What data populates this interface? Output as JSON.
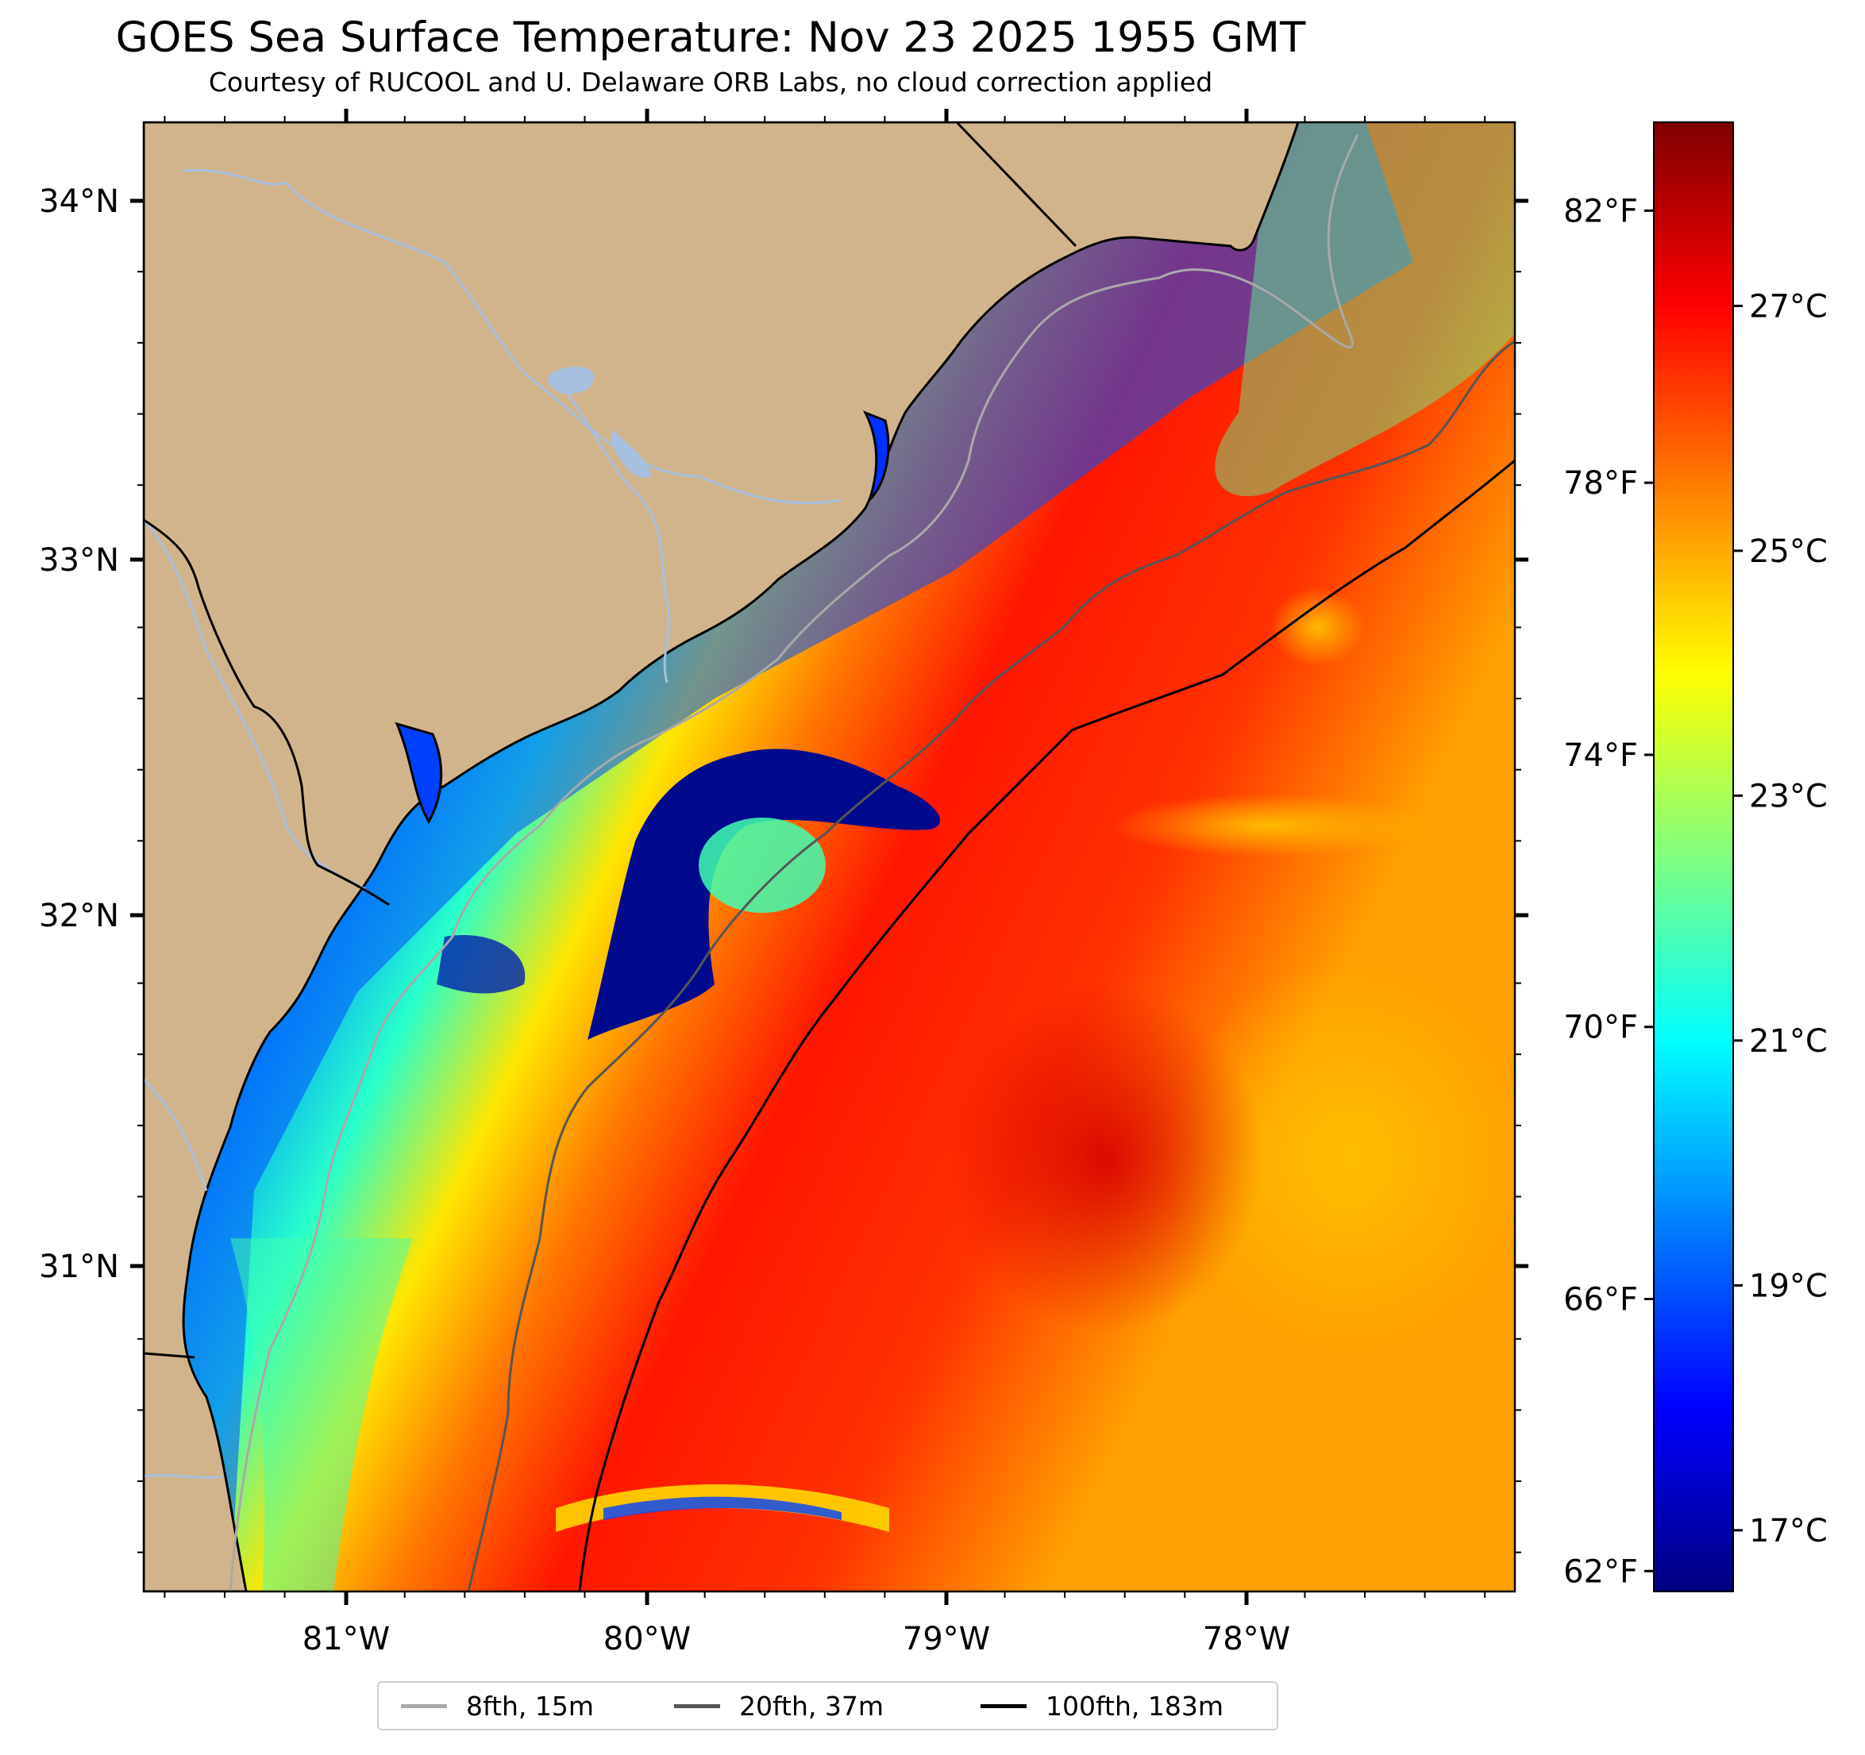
{
  "title": "GOES Sea Surface Temperature: Nov 23 2025 1955 GMT",
  "subtitle": "Courtesy of RUCOOL and U. Delaware ORB Labs, no cloud correction applied",
  "map": {
    "extent": {
      "lon_min": -81.67,
      "lon_max": -77.1,
      "lat_min": 30.09,
      "lat_max": 34.22
    },
    "land_color": "#d2b48c",
    "water_line_color": "#a8c0e0",
    "lon_ticks": [
      {
        "value": -81,
        "label": "81°W"
      },
      {
        "value": -80,
        "label": "80°W"
      },
      {
        "value": -79,
        "label": "79°W"
      },
      {
        "value": -78,
        "label": "78°W"
      }
    ],
    "lat_ticks": [
      {
        "value": 34,
        "label": "34°N"
      },
      {
        "value": 33,
        "label": "33°N"
      },
      {
        "value": 32,
        "label": "32°N"
      },
      {
        "value": 31,
        "label": "31°N"
      }
    ]
  },
  "colorbar": {
    "colormap": "jet",
    "celsius_range": [
      16.5,
      28.5
    ],
    "celsius_ticks": [
      {
        "value": 17,
        "label": "17°C"
      },
      {
        "value": 19,
        "label": "19°C"
      },
      {
        "value": 21,
        "label": "21°C"
      },
      {
        "value": 23,
        "label": "23°C"
      },
      {
        "value": 25,
        "label": "25°C"
      },
      {
        "value": 27,
        "label": "27°C"
      }
    ],
    "fahrenheit_ticks": [
      {
        "value": 62,
        "label": "62°F"
      },
      {
        "value": 66,
        "label": "66°F"
      },
      {
        "value": 70,
        "label": "70°F"
      },
      {
        "value": 74,
        "label": "74°F"
      },
      {
        "value": 78,
        "label": "78°F"
      },
      {
        "value": 82,
        "label": "82°F"
      }
    ]
  },
  "legend": {
    "items": [
      {
        "label": "8fth, 15m",
        "color": "#a9a9a9"
      },
      {
        "label": "20fth, 37m",
        "color": "#555555"
      },
      {
        "label": "100fth, 183m",
        "color": "#000000"
      }
    ]
  }
}
